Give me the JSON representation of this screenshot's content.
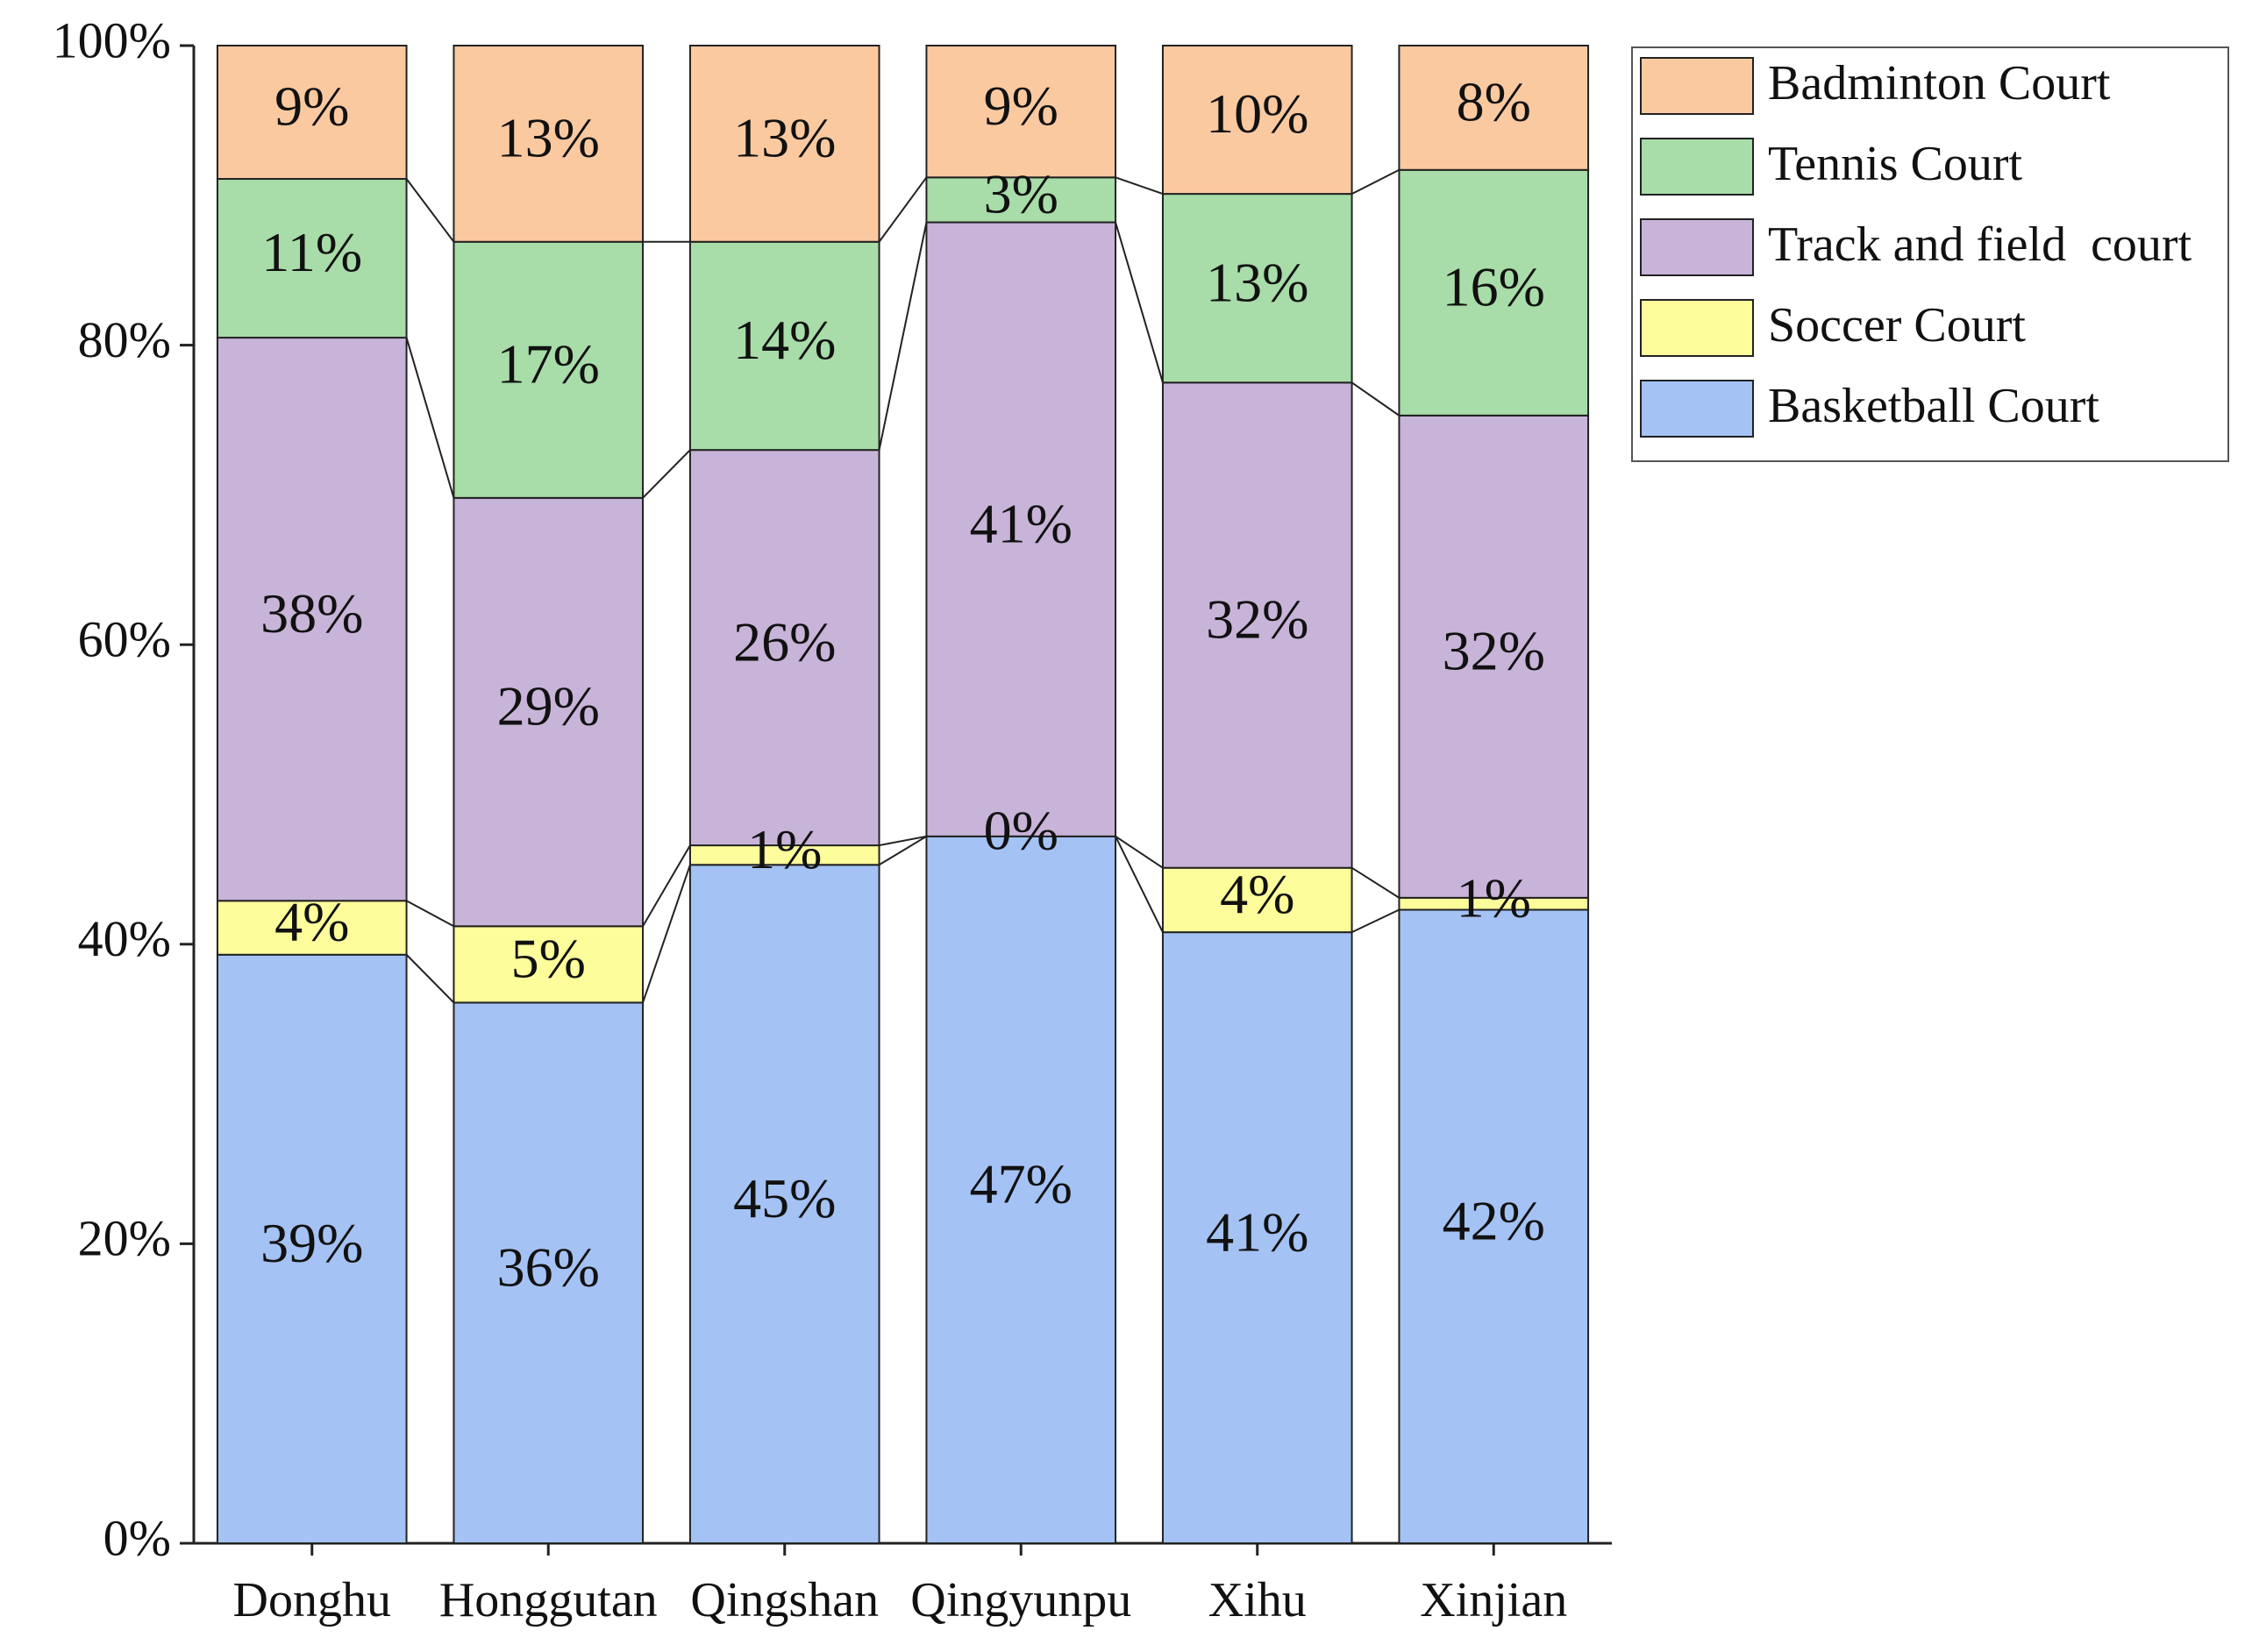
{
  "chart_data": {
    "type": "stacked_bar",
    "categories": [
      "Donghu",
      "Honggutan",
      "Qingshan",
      "Qingyunpu",
      "Xihu",
      "Xinjian"
    ],
    "series": [
      {
        "name": "Basketball Court",
        "color": "#a4c2f4",
        "values": [
          39.3,
          36.1,
          45.3,
          47.2,
          40.8,
          42.3
        ],
        "value_labels": [
          "39%",
          "36%",
          "45%",
          "47%",
          "41%",
          "42%"
        ]
      },
      {
        "name": "Soccer Court",
        "color": "#fdfd9c",
        "values": [
          3.6,
          5.1,
          1.3,
          0,
          4.3,
          0.8
        ],
        "value_labels": [
          "4%",
          "5%",
          "1%",
          "0%",
          "4%",
          "1%"
        ]
      },
      {
        "name": "Track and field  court",
        "color": "#c8b4d8",
        "values": [
          37.6,
          28.6,
          26.4,
          41.0,
          32.4,
          32.2
        ],
        "value_labels": [
          "38%",
          "29%",
          "26%",
          "41%",
          "32%",
          "32%"
        ]
      },
      {
        "name": "Tennis Court",
        "color": "#a8dca8",
        "values": [
          10.6,
          17.1,
          13.9,
          3.0,
          12.6,
          16.4
        ],
        "value_labels": [
          "11%",
          "17%",
          "14%",
          "3%",
          "13%",
          "16%"
        ]
      },
      {
        "name": "Badminton Court",
        "color": "#fbc9a0",
        "values": [
          8.9,
          13.1,
          13.1,
          8.8,
          9.9,
          8.3
        ],
        "value_labels": [
          "9%",
          "13%",
          "13%",
          "9%",
          "10%",
          "8%"
        ]
      }
    ],
    "ylim": [
      0,
      100
    ],
    "yticks": [
      {
        "value": 0,
        "label": "0%"
      },
      {
        "value": 20,
        "label": "20%"
      },
      {
        "value": 40,
        "label": "40%"
      },
      {
        "value": 60,
        "label": "60%"
      },
      {
        "value": 80,
        "label": "80%"
      },
      {
        "value": 100,
        "label": "100%"
      }
    ],
    "legend": "right"
  }
}
